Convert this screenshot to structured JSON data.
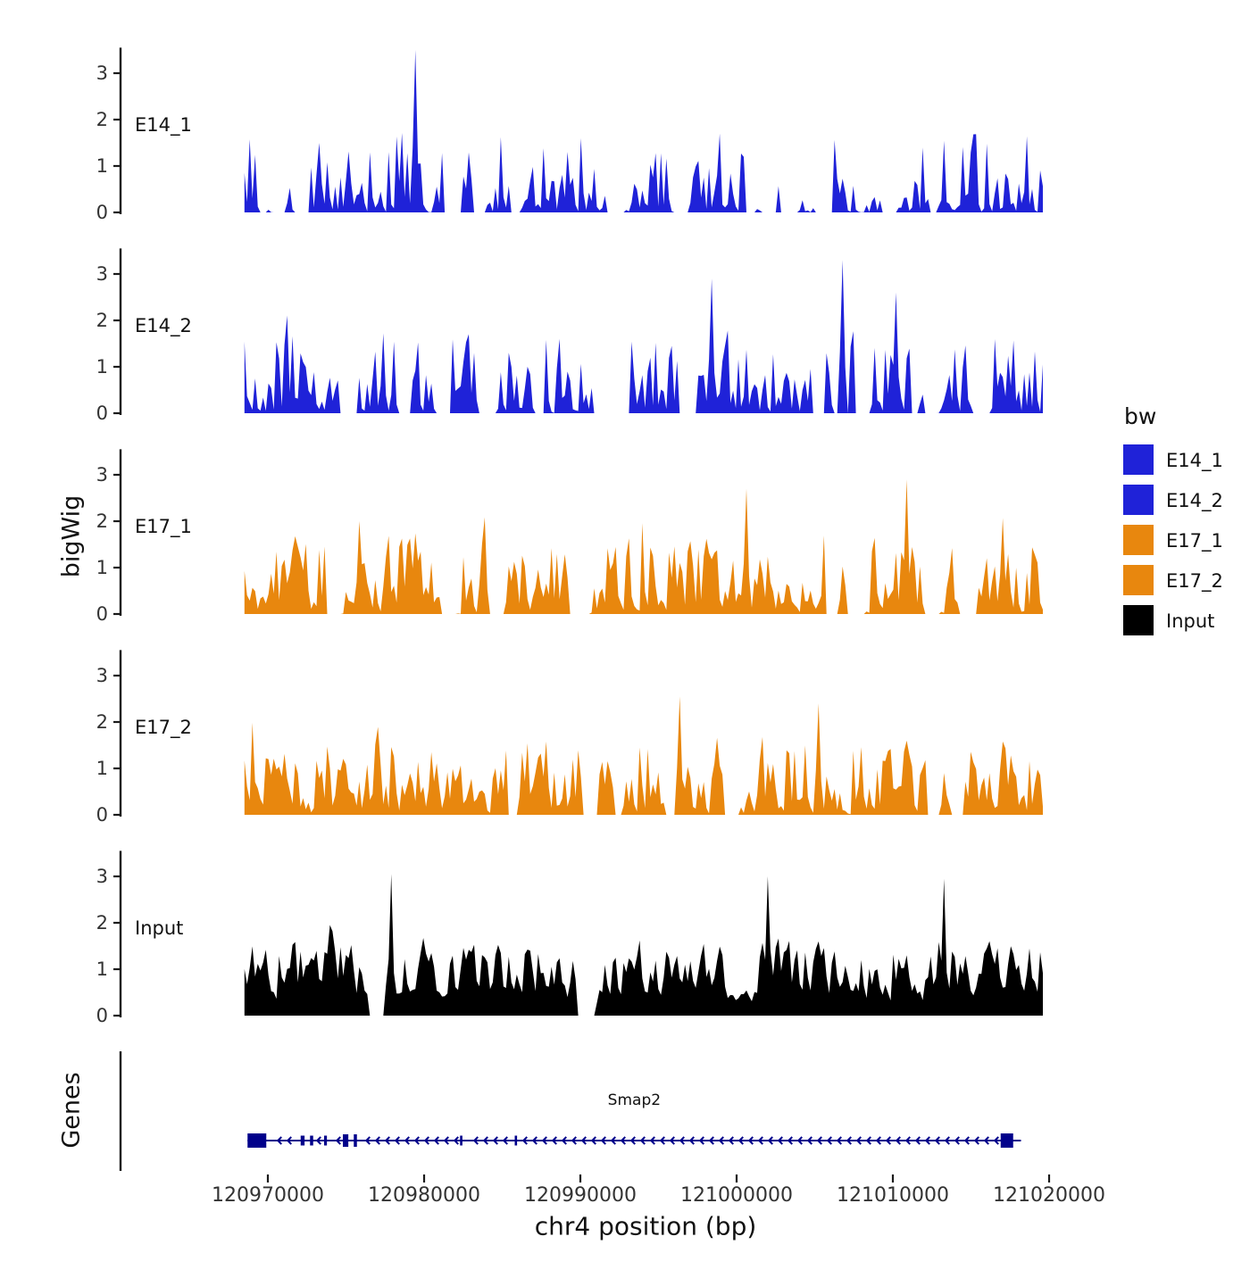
{
  "figure": {
    "y_axis_label": "bigWig",
    "genes_axis_label": "Genes",
    "x_axis_label": "chr4 position (bp)"
  },
  "chart_data": {
    "type": "area",
    "subtype": "genome-coverage-tracks",
    "chromosome": "chr4",
    "x_range_bp": [
      120968500,
      121019600
    ],
    "x_ticks": [
      {
        "bp": 120970000,
        "label": "120970000"
      },
      {
        "bp": 120980000,
        "label": "120980000"
      },
      {
        "bp": 120990000,
        "label": "120990000"
      },
      {
        "bp": 121000000,
        "label": "121000000"
      },
      {
        "bp": 121010000,
        "label": "121010000"
      },
      {
        "bp": 121020000,
        "label": "121020000"
      }
    ],
    "y_ticks": [
      0,
      1,
      2,
      3
    ],
    "ylim": [
      0,
      3.6
    ],
    "tracks": [
      {
        "label": "E14_1",
        "color": "#1F22D8",
        "seed": 101,
        "points": 300,
        "pow": 2.6,
        "amp": 1.9,
        "gap_prob": 0.055,
        "spike_prob": 0.05,
        "spike_amp": 1.1,
        "smooth": 0.1,
        "base": 0,
        "marked_peaks": [
          {
            "t": 0.215,
            "v": 3.5
          }
        ]
      },
      {
        "label": "E14_2",
        "color": "#1F22D8",
        "seed": 202,
        "points": 300,
        "pow": 2.2,
        "amp": 1.9,
        "gap_prob": 0.04,
        "spike_prob": 0.06,
        "spike_amp": 1.0,
        "smooth": 0.12,
        "base": 0,
        "marked_peaks": [
          {
            "t": 0.585,
            "v": 2.9
          },
          {
            "t": 0.75,
            "v": 3.3
          },
          {
            "t": 0.815,
            "v": 2.6
          }
        ]
      },
      {
        "label": "E17_1",
        "color": "#E8870E",
        "seed": 303,
        "points": 300,
        "pow": 1.9,
        "amp": 1.8,
        "gap_prob": 0.03,
        "spike_prob": 0.05,
        "spike_amp": 0.9,
        "smooth": 0.22,
        "base": 0,
        "marked_peaks": [
          {
            "t": 0.63,
            "v": 2.7
          },
          {
            "t": 0.828,
            "v": 2.9
          }
        ]
      },
      {
        "label": "E17_2",
        "color": "#E8870E",
        "seed": 404,
        "points": 300,
        "pow": 1.9,
        "amp": 1.8,
        "gap_prob": 0.04,
        "spike_prob": 0.05,
        "spike_amp": 0.9,
        "smooth": 0.2,
        "base": 0,
        "marked_peaks": [
          {
            "t": 0.545,
            "v": 2.55
          },
          {
            "t": 0.72,
            "v": 2.4
          }
        ]
      },
      {
        "label": "Input",
        "color": "#000000",
        "seed": 505,
        "points": 300,
        "pow": 1.3,
        "amp": 1.85,
        "gap_prob": 0.012,
        "spike_prob": 0.05,
        "spike_amp": 0.9,
        "smooth": 0.35,
        "base": 0.18,
        "marked_peaks": [
          {
            "t": 0.185,
            "v": 3.05
          },
          {
            "t": 0.655,
            "v": 3.0
          },
          {
            "t": 0.875,
            "v": 2.95
          }
        ]
      }
    ],
    "gene": {
      "name": "Smap2",
      "strand": "-",
      "start": 120968700,
      "end": 121018200,
      "color": "#00008B",
      "exons": [
        {
          "start": 120968700,
          "end": 120969900,
          "h": 16
        },
        {
          "start": 120972100,
          "end": 120972350,
          "h": 11
        },
        {
          "start": 120972700,
          "end": 120972900,
          "h": 11
        },
        {
          "start": 120973600,
          "end": 120973780,
          "h": 11
        },
        {
          "start": 120974800,
          "end": 120975150,
          "h": 14
        },
        {
          "start": 120975500,
          "end": 120975700,
          "h": 14
        },
        {
          "start": 120982300,
          "end": 120982450,
          "h": 11
        },
        {
          "start": 120985800,
          "end": 120985950,
          "h": 11
        },
        {
          "start": 121016900,
          "end": 121017700,
          "h": 16
        }
      ]
    },
    "legend": {
      "title": "bw",
      "items": [
        {
          "label": "E14_1",
          "color": "#1F22D8"
        },
        {
          "label": "E14_2",
          "color": "#1F22D8"
        },
        {
          "label": "E17_1",
          "color": "#E8870E"
        },
        {
          "label": "E17_2",
          "color": "#E8870E"
        },
        {
          "label": "Input",
          "color": "#000000"
        }
      ]
    }
  }
}
